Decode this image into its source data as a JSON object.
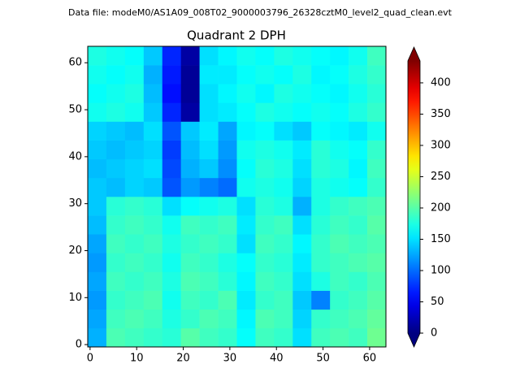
{
  "chart_data": {
    "type": "heatmap",
    "suptitle": "Data file: modeM0/AS1A09_008T02_9000003796_26328cztM0_level2_quad_clean.evt",
    "title": "Quadrant 2 DPH",
    "xlim": [
      -0.5,
      63.5
    ],
    "ylim": [
      -0.5,
      63.5
    ],
    "xticks": [
      0,
      10,
      20,
      30,
      40,
      50,
      60
    ],
    "yticks": [
      0,
      10,
      20,
      30,
      40,
      50,
      60
    ],
    "colormap": "jet",
    "clim": [
      0,
      435
    ],
    "colorbar_ticks": [
      0,
      50,
      100,
      150,
      200,
      250,
      300,
      350,
      400
    ],
    "z": [
      [
        130,
        195,
        190,
        185,
        180,
        200,
        190,
        185,
        165,
        190,
        185,
        150,
        190,
        195,
        190,
        210
      ],
      [
        125,
        190,
        195,
        190,
        175,
        185,
        195,
        190,
        160,
        195,
        190,
        145,
        185,
        190,
        195,
        205
      ],
      [
        120,
        185,
        190,
        195,
        170,
        190,
        185,
        195,
        155,
        185,
        190,
        140,
        110,
        185,
        190,
        200
      ],
      [
        125,
        190,
        185,
        190,
        175,
        195,
        190,
        180,
        160,
        190,
        185,
        150,
        175,
        190,
        185,
        195
      ],
      [
        120,
        185,
        190,
        185,
        170,
        190,
        185,
        175,
        165,
        185,
        180,
        155,
        185,
        190,
        195,
        200
      ],
      [
        125,
        190,
        185,
        190,
        175,
        185,
        190,
        185,
        150,
        190,
        185,
        160,
        185,
        195,
        190,
        195
      ],
      [
        135,
        185,
        190,
        185,
        170,
        190,
        185,
        190,
        155,
        185,
        190,
        150,
        180,
        190,
        185,
        200
      ],
      [
        140,
        180,
        185,
        180,
        150,
        165,
        170,
        175,
        150,
        180,
        175,
        130,
        175,
        185,
        190,
        195
      ],
      [
        140,
        135,
        145,
        140,
        90,
        120,
        110,
        100,
        170,
        175,
        170,
        145,
        175,
        170,
        165,
        185
      ],
      [
        135,
        140,
        145,
        150,
        85,
        130,
        140,
        115,
        165,
        180,
        175,
        150,
        180,
        175,
        160,
        190
      ],
      [
        140,
        135,
        140,
        145,
        80,
        135,
        150,
        120,
        170,
        175,
        170,
        155,
        180,
        170,
        165,
        185
      ],
      [
        145,
        140,
        135,
        150,
        90,
        140,
        155,
        125,
        160,
        165,
        150,
        140,
        165,
        160,
        155,
        170
      ],
      [
        170,
        175,
        170,
        140,
        70,
        15,
        150,
        155,
        165,
        175,
        170,
        165,
        170,
        165,
        175,
        185
      ],
      [
        165,
        170,
        175,
        135,
        60,
        10,
        150,
        160,
        170,
        160,
        175,
        170,
        165,
        160,
        170,
        180
      ],
      [
        170,
        165,
        170,
        130,
        65,
        10,
        155,
        155,
        165,
        170,
        165,
        175,
        160,
        165,
        175,
        185
      ],
      [
        175,
        170,
        165,
        140,
        70,
        15,
        150,
        160,
        170,
        165,
        175,
        170,
        165,
        160,
        170,
        190
      ]
    ]
  }
}
